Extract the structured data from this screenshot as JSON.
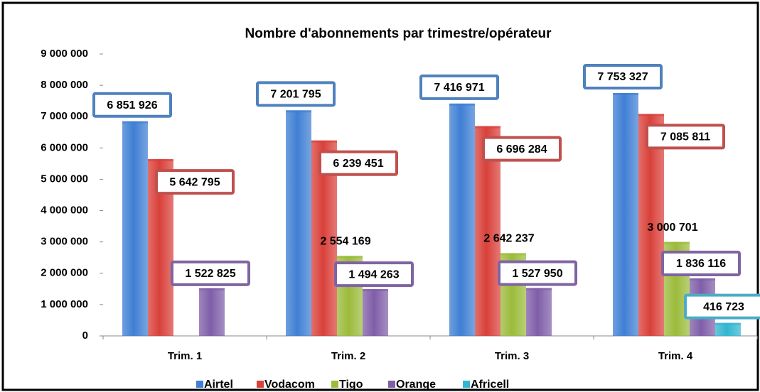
{
  "chart_data": {
    "type": "bar",
    "title": "Nombre d'abonnements par trimestre/opérateur",
    "categories": [
      "Trim. 1",
      "Trim. 2",
      "Trim. 3",
      "Trim. 4"
    ],
    "series": [
      {
        "name": "Airtel",
        "color": "#3f7fd4",
        "values": [
          6851926,
          7201795,
          7416971,
          7753327
        ],
        "value_labels": [
          "6 851 926",
          "7 201 795",
          "7 416 971",
          "7 753 327"
        ]
      },
      {
        "name": "Vodacom",
        "color": "#d9403a",
        "values": [
          5642795,
          6239451,
          6696284,
          7085811
        ],
        "value_labels": [
          "5 642 795",
          "6 239 451",
          "6 696 284",
          "7 085 811"
        ]
      },
      {
        "name": "Tigo",
        "color": "#9bbb3b",
        "values": [
          null,
          2554169,
          2642237,
          3000701
        ],
        "value_labels": [
          null,
          "2 554 169",
          "2 642 237",
          "3 000 701"
        ]
      },
      {
        "name": "Orange",
        "color": "#7f5ea8",
        "values": [
          1522825,
          1494263,
          1527950,
          1836116
        ],
        "value_labels": [
          "1 522 825",
          "1 494 263",
          "1 527 950",
          "1 836 116"
        ]
      },
      {
        "name": "Africell",
        "color": "#33b5cf",
        "values": [
          null,
          null,
          null,
          416723
        ],
        "value_labels": [
          null,
          null,
          null,
          "416 723"
        ]
      }
    ],
    "ylim": [
      0,
      9000000
    ],
    "yticks": [
      0,
      {
        "value": 1000000,
        "label": "1 000 000"
      },
      {
        "value": 2000000,
        "label": "2 000 000"
      },
      {
        "value": 3000000,
        "label": "3 000 000"
      },
      {
        "value": 4000000,
        "label": "4 000 000"
      },
      {
        "value": 5000000,
        "label": "5 000 000"
      },
      {
        "value": 6000000,
        "label": "6 000 000"
      },
      {
        "value": 7000000,
        "label": "7 000 000"
      },
      {
        "value": 8000000,
        "label": "8 000 000"
      },
      {
        "value": 9000000,
        "label": "9 000 000"
      }
    ],
    "legend": "bottom",
    "grid": false
  }
}
